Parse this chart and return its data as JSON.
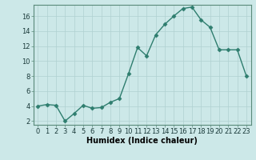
{
  "x": [
    0,
    1,
    2,
    3,
    4,
    5,
    6,
    7,
    8,
    9,
    10,
    11,
    12,
    13,
    14,
    15,
    16,
    17,
    18,
    19,
    20,
    21,
    22,
    23
  ],
  "y": [
    4.0,
    4.2,
    4.1,
    2.0,
    3.0,
    4.1,
    3.7,
    3.8,
    4.5,
    5.0,
    8.3,
    11.8,
    10.7,
    13.5,
    14.9,
    16.0,
    17.0,
    17.2,
    15.5,
    14.5,
    11.5,
    11.5,
    11.5,
    8.0
  ],
  "line_color": "#2e7d6e",
  "marker": "D",
  "markersize": 2.5,
  "bg_color": "#cce8e8",
  "grid_color": "#b0d0d0",
  "xlabel": "Humidex (Indice chaleur)",
  "xlim": [
    -0.5,
    23.5
  ],
  "ylim": [
    1.5,
    17.5
  ],
  "yticks": [
    2,
    4,
    6,
    8,
    10,
    12,
    14,
    16
  ],
  "xticks": [
    0,
    1,
    2,
    3,
    4,
    5,
    6,
    7,
    8,
    9,
    10,
    11,
    12,
    13,
    14,
    15,
    16,
    17,
    18,
    19,
    20,
    21,
    22,
    23
  ],
  "tick_fontsize": 6,
  "xlabel_fontsize": 7,
  "linewidth": 1.0
}
